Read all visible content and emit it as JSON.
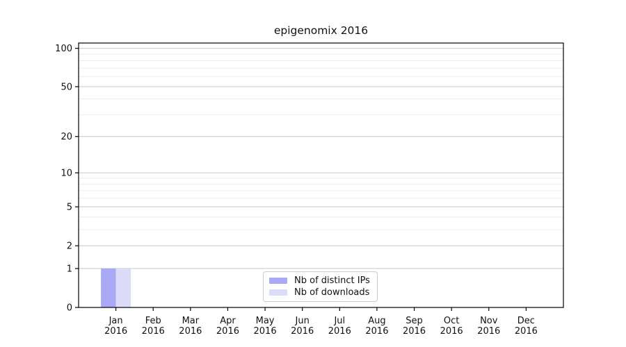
{
  "chart_data": {
    "type": "bar",
    "title": "epigenomix 2016",
    "categories": [
      "Jan",
      "Feb",
      "Mar",
      "Apr",
      "May",
      "Jun",
      "Jul",
      "Aug",
      "Sep",
      "Oct",
      "Nov",
      "Dec"
    ],
    "category_year": "2016",
    "series": [
      {
        "name": "Nb of distinct IPs",
        "color": "#a9a9f5",
        "values": [
          1,
          0,
          0,
          0,
          0,
          0,
          0,
          0,
          0,
          0,
          0,
          0
        ]
      },
      {
        "name": "Nb of downloads",
        "color": "#dcdcf8",
        "values": [
          1,
          0,
          0,
          0,
          0,
          0,
          0,
          0,
          0,
          0,
          0,
          0
        ]
      }
    ],
    "y_ticks": [
      0,
      1,
      2,
      5,
      10,
      20,
      50,
      100
    ],
    "y_minor_ticks": [
      3,
      4,
      6,
      7,
      8,
      9,
      30,
      40,
      60,
      70,
      80,
      90
    ],
    "ylim": [
      0,
      110
    ],
    "scale": "log1p",
    "grid": "horizontal",
    "legend_position": "bottom-center",
    "colors": {
      "major_grid": "#c8c8c8",
      "minor_grid": "#ececec",
      "axis": "#000000",
      "text": "#111111",
      "legend_border": "#cccccc",
      "background": "#ffffff"
    }
  }
}
